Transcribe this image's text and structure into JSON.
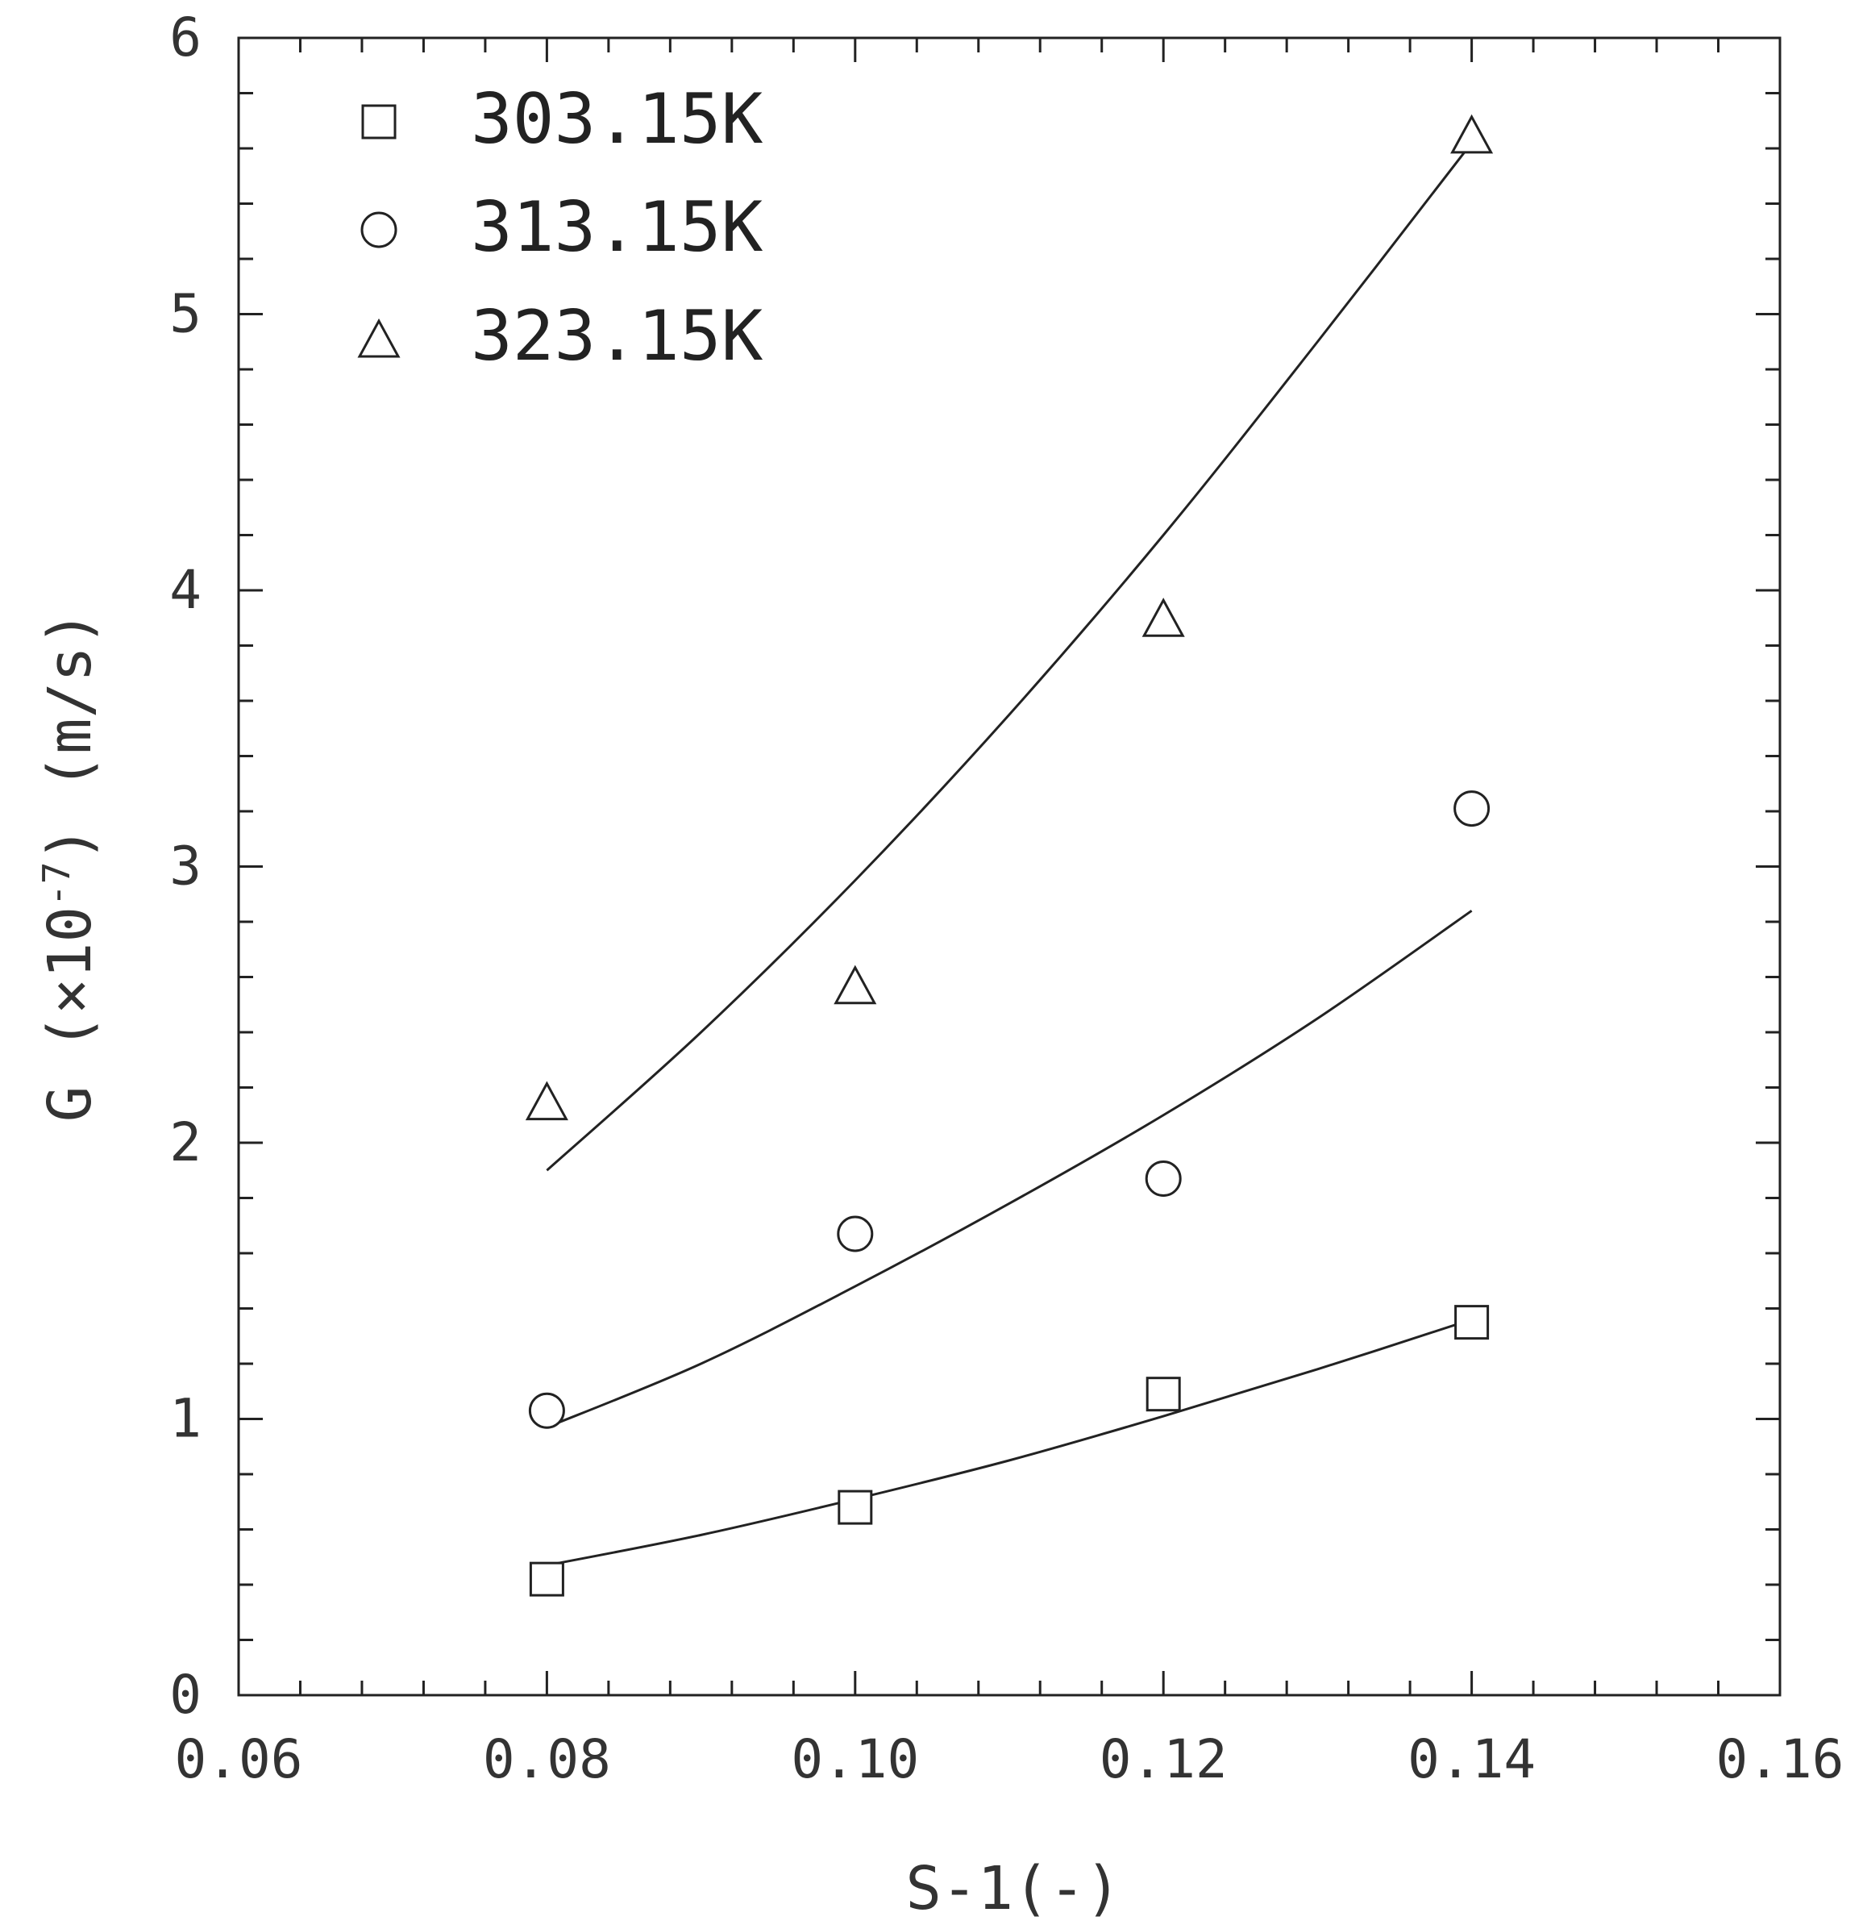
{
  "chart_data": {
    "type": "scatter",
    "xlabel": "S-1(-)",
    "ylabel": {
      "prefix": "G  (×10",
      "exponent": "-7",
      "suffix": ") (m/s)"
    },
    "xlim": [
      0.06,
      0.16
    ],
    "ylim": [
      0,
      6
    ],
    "x_ticks": [
      0.06,
      0.08,
      0.1,
      0.12,
      0.14,
      0.16
    ],
    "x_tick_labels": [
      "0.06",
      "0.08",
      "0.10",
      "0.12",
      "0.14",
      "0.16"
    ],
    "x_minor_step": 0.004,
    "y_ticks": [
      0,
      1,
      2,
      3,
      4,
      5,
      6
    ],
    "y_tick_labels": [
      "0",
      "1",
      "2",
      "3",
      "4",
      "5",
      "6"
    ],
    "y_minor_step": 0.2,
    "grid": false,
    "legend_position": "top-left",
    "series": [
      {
        "name": "303.15K",
        "marker": "square",
        "x": [
          0.08,
          0.1,
          0.12,
          0.14
        ],
        "y": [
          0.42,
          0.68,
          1.09,
          1.35
        ],
        "fit": {
          "x": [
            0.08,
            0.09,
            0.1,
            0.11,
            0.12,
            0.13,
            0.14
          ],
          "y": [
            0.47,
            0.58,
            0.71,
            0.85,
            1.01,
            1.18,
            1.36
          ]
        }
      },
      {
        "name": "313.15K",
        "marker": "circle",
        "x": [
          0.08,
          0.1,
          0.12,
          0.14
        ],
        "y": [
          1.03,
          1.67,
          1.87,
          3.21
        ],
        "fit": {
          "x": [
            0.08,
            0.09,
            0.1,
            0.11,
            0.12,
            0.13,
            0.14
          ],
          "y": [
            0.97,
            1.2,
            1.48,
            1.78,
            2.1,
            2.45,
            2.84
          ]
        }
      },
      {
        "name": "323.15K",
        "marker": "triangle",
        "x": [
          0.08,
          0.1,
          0.12,
          0.14
        ],
        "y": [
          2.15,
          2.57,
          3.9,
          5.65
        ],
        "fit": {
          "x": [
            0.08,
            0.09,
            0.1,
            0.11,
            0.12,
            0.13,
            0.14
          ],
          "y": [
            1.9,
            2.4,
            2.95,
            3.55,
            4.2,
            4.9,
            5.62
          ]
        }
      }
    ]
  }
}
